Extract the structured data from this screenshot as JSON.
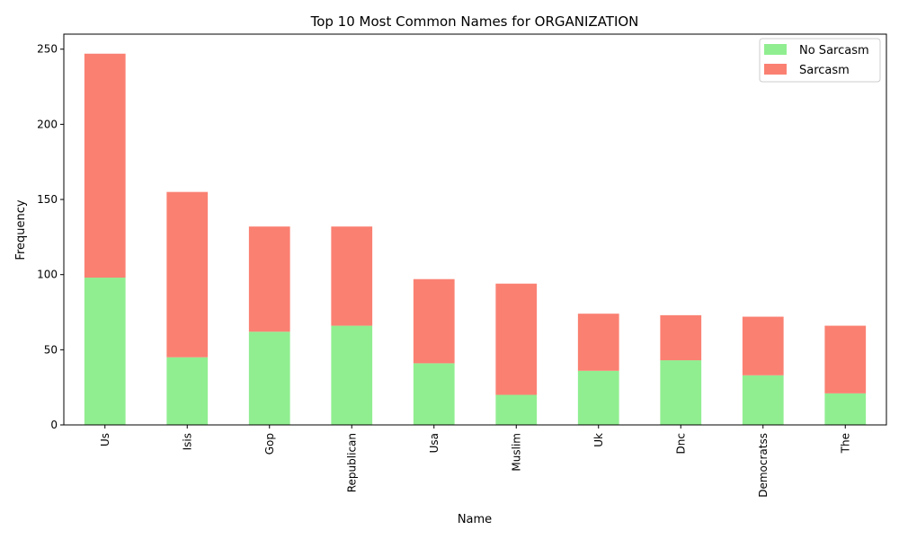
{
  "chart_data": {
    "type": "bar",
    "stacked": true,
    "title": "Top 10 Most Common Names for ORGANIZATION",
    "xlabel": "Name",
    "ylabel": "Frequency",
    "categories": [
      "Us",
      "Isis",
      "Gop",
      "Republican",
      "Usa",
      "Muslim",
      "Uk",
      "Dnc",
      "Democratss",
      "The"
    ],
    "series": [
      {
        "name": "No Sarcasm",
        "color": "#90ee90",
        "values": [
          98,
          45,
          62,
          66,
          41,
          20,
          36,
          43,
          33,
          21
        ]
      },
      {
        "name": "Sarcasm",
        "color": "#fa8072",
        "values": [
          149,
          110,
          70,
          66,
          56,
          74,
          38,
          30,
          39,
          45
        ]
      }
    ],
    "ylim": [
      0,
      260
    ],
    "yticks": [
      0,
      50,
      100,
      150,
      200,
      250
    ],
    "grid": false,
    "legend_position": "top-right"
  }
}
